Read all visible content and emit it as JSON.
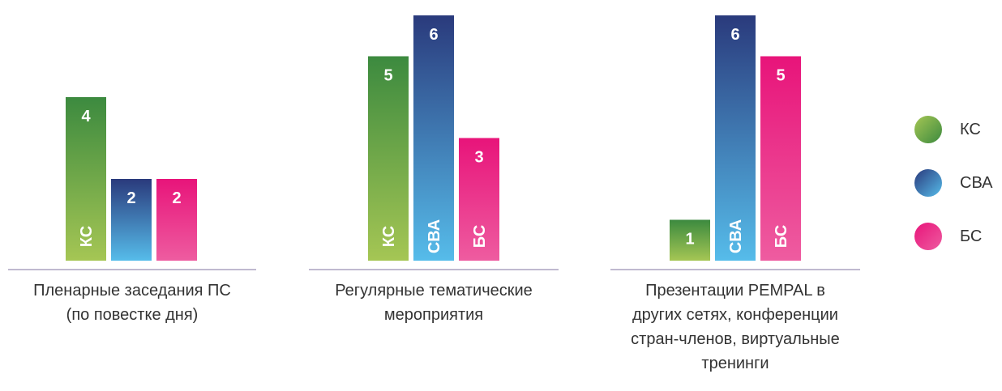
{
  "chart_data": {
    "type": "bar",
    "series": [
      {
        "name": "КС",
        "colors": [
          "#3c8a3f",
          "#a5c654"
        ]
      },
      {
        "name": "СВА",
        "colors": [
          "#2a3a7c",
          "#56bcea"
        ]
      },
      {
        "name": "БС",
        "colors": [
          "#e8147a",
          "#ee5ca0"
        ]
      }
    ],
    "groups": [
      {
        "label": "Пленарные заседания ПС (по повестке дня)",
        "label_lines": [
          "Пленарные заседания ПС",
          "(по повестке дня)"
        ],
        "values": [
          4,
          2,
          2
        ],
        "bar_text": [
          "КС",
          "",
          ""
        ]
      },
      {
        "label": "Регулярные тематические мероприятия",
        "label_lines": [
          "Регулярные тематические",
          "мероприятия"
        ],
        "values": [
          5,
          6,
          3
        ],
        "bar_text": [
          "КС",
          "СВА",
          "БС"
        ]
      },
      {
        "label": "Презентации PEMPAL в других сетях, конференции стран-членов, виртуальные тренинги",
        "label_lines": [
          "Презентации PEMPAL в",
          "других сетях, конференции",
          "стран-членов, виртуальные",
          "тренинги"
        ],
        "values": [
          1,
          6,
          5
        ],
        "bar_text": [
          "",
          "СВА",
          "БС"
        ]
      }
    ],
    "ylim": [
      0,
      6
    ]
  },
  "legend": [
    {
      "label": "КС"
    },
    {
      "label": "СВА"
    },
    {
      "label": "БС"
    }
  ]
}
